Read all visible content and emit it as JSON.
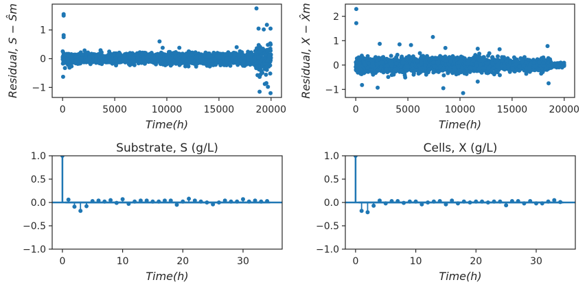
{
  "chart_data": [
    {
      "type": "scatter",
      "id": "residual-s",
      "title": "",
      "xlabel": "Time(h)",
      "ylabel": "Residual, S − Ŝm",
      "xlim": [
        -1000,
        21000
      ],
      "ylim": [
        -1.35,
        1.9
      ],
      "xticks": [
        0,
        5000,
        10000,
        15000,
        20000
      ],
      "xtick_labels": [
        "0",
        "5000",
        "10000",
        "15000",
        "20000"
      ],
      "yticks": [
        -1,
        0,
        1
      ],
      "ytick_labels": [
        "−1",
        "0",
        "1"
      ],
      "color": "#1f77b4",
      "noise": {
        "n": 2000,
        "x_range": [
          0,
          20000
        ],
        "spread": 0.17,
        "late_start": 18500,
        "late_spread": 0.45
      },
      "outliers": [
        [
          100,
          1.55
        ],
        [
          100,
          1.5
        ],
        [
          100,
          0.82
        ],
        [
          100,
          0.75
        ],
        [
          50,
          -0.63
        ],
        [
          9300,
          0.6
        ],
        [
          9600,
          0.38
        ],
        [
          11200,
          0.38
        ],
        [
          16700,
          0.4
        ],
        [
          18600,
          1.75
        ],
        [
          18800,
          1.05
        ],
        [
          19300,
          1.02
        ],
        [
          19600,
          1.18
        ],
        [
          19950,
          1.05
        ],
        [
          18900,
          -1.15
        ],
        [
          19700,
          -0.98
        ],
        [
          19950,
          -1.2
        ],
        [
          19400,
          -0.88
        ],
        [
          19550,
          -0.85
        ]
      ]
    },
    {
      "type": "scatter",
      "id": "residual-x",
      "title": "",
      "xlabel": "Time(h)",
      "ylabel": "Residual, X − X̂m",
      "xlim": [
        -1000,
        21000
      ],
      "ylim": [
        -1.33,
        2.5
      ],
      "xticks": [
        0,
        5000,
        10000,
        15000,
        20000
      ],
      "xtick_labels": [
        "0",
        "5000",
        "10000",
        "15000",
        "20000"
      ],
      "yticks": [
        -1,
        0,
        1,
        2
      ],
      "ytick_labels": [
        "−1",
        "0",
        "1",
        "2"
      ],
      "color": "#1f77b4",
      "noise": {
        "n": 2600,
        "x_range": [
          0,
          20000
        ],
        "spread": 0.3,
        "late_start": 18700,
        "late_spread": 0.08
      },
      "outliers": [
        [
          50,
          2.3
        ],
        [
          50,
          1.72
        ],
        [
          7400,
          1.15
        ],
        [
          2300,
          0.87
        ],
        [
          4200,
          0.85
        ],
        [
          5300,
          0.82
        ],
        [
          8600,
          0.7
        ],
        [
          11700,
          0.67
        ],
        [
          13800,
          0.65
        ],
        [
          18400,
          0.78
        ],
        [
          10300,
          -1.15
        ],
        [
          2100,
          -0.93
        ],
        [
          8400,
          -0.95
        ],
        [
          600,
          -0.82
        ],
        [
          18500,
          -0.75
        ],
        [
          11700,
          -0.68
        ]
      ]
    },
    {
      "type": "stem",
      "id": "acf-substrate",
      "title": "Substrate, S (g/L)",
      "xlabel": "Time(h)",
      "ylabel": "",
      "xlim": [
        -1.7,
        36.5
      ],
      "ylim": [
        -1.0,
        1.0
      ],
      "xticks": [
        0,
        10,
        20,
        30
      ],
      "xtick_labels": [
        "0",
        "10",
        "20",
        "30"
      ],
      "yticks": [
        -1.0,
        -0.5,
        0.0,
        0.5,
        1.0
      ],
      "ytick_labels": [
        "−1.0",
        "−0.5",
        "0.0",
        "0.5",
        "1.0"
      ],
      "color": "#1f77b4",
      "confint": 0.03,
      "lags": [
        0,
        1,
        2,
        3,
        4,
        5,
        6,
        7,
        8,
        9,
        10,
        11,
        12,
        13,
        14,
        15,
        16,
        17,
        18,
        19,
        20,
        21,
        22,
        23,
        24,
        25,
        26,
        27,
        28,
        29,
        30,
        31,
        32,
        33,
        34
      ],
      "values": [
        1.0,
        0.06,
        -0.09,
        -0.18,
        -0.08,
        0.03,
        0.04,
        0.02,
        0.05,
        -0.01,
        0.07,
        -0.03,
        0.02,
        0.04,
        0.04,
        0.02,
        0.02,
        0.04,
        0.04,
        -0.05,
        0.02,
        0.08,
        0.04,
        0.02,
        0.0,
        -0.04,
        0.0,
        0.04,
        0.02,
        0.02,
        0.07,
        0.02,
        0.04,
        0.02,
        0.03
      ]
    },
    {
      "type": "stem",
      "id": "acf-cells",
      "title": "Cells, X (g/L)",
      "xlabel": "Time(h)",
      "ylabel": "",
      "xlim": [
        -1.7,
        36.5
      ],
      "ylim": [
        -1.0,
        1.0
      ],
      "xticks": [
        0,
        10,
        20,
        30
      ],
      "xtick_labels": [
        "0",
        "10",
        "20",
        "30"
      ],
      "yticks": [
        -1.0,
        -0.5,
        0.0,
        0.5,
        1.0
      ],
      "ytick_labels": [
        "−1.0",
        "−0.5",
        "0.0",
        "0.5",
        "1.0"
      ],
      "color": "#1f77b4",
      "confint": 0.03,
      "lags": [
        0,
        1,
        2,
        3,
        4,
        5,
        6,
        7,
        8,
        9,
        10,
        11,
        12,
        13,
        14,
        15,
        16,
        17,
        18,
        19,
        20,
        21,
        22,
        23,
        24,
        25,
        26,
        27,
        28,
        29,
        30,
        31,
        32,
        33,
        34
      ],
      "values": [
        1.0,
        -0.18,
        -0.21,
        -0.07,
        0.04,
        -0.02,
        0.03,
        0.03,
        -0.01,
        0.02,
        0.02,
        -0.04,
        0.0,
        0.02,
        0.03,
        -0.04,
        0.04,
        -0.02,
        0.02,
        0.0,
        0.02,
        0.02,
        0.0,
        0.02,
        0.02,
        -0.06,
        0.03,
        0.03,
        -0.02,
        0.03,
        -0.02,
        -0.02,
        0.02,
        0.05,
        0.01
      ]
    }
  ]
}
